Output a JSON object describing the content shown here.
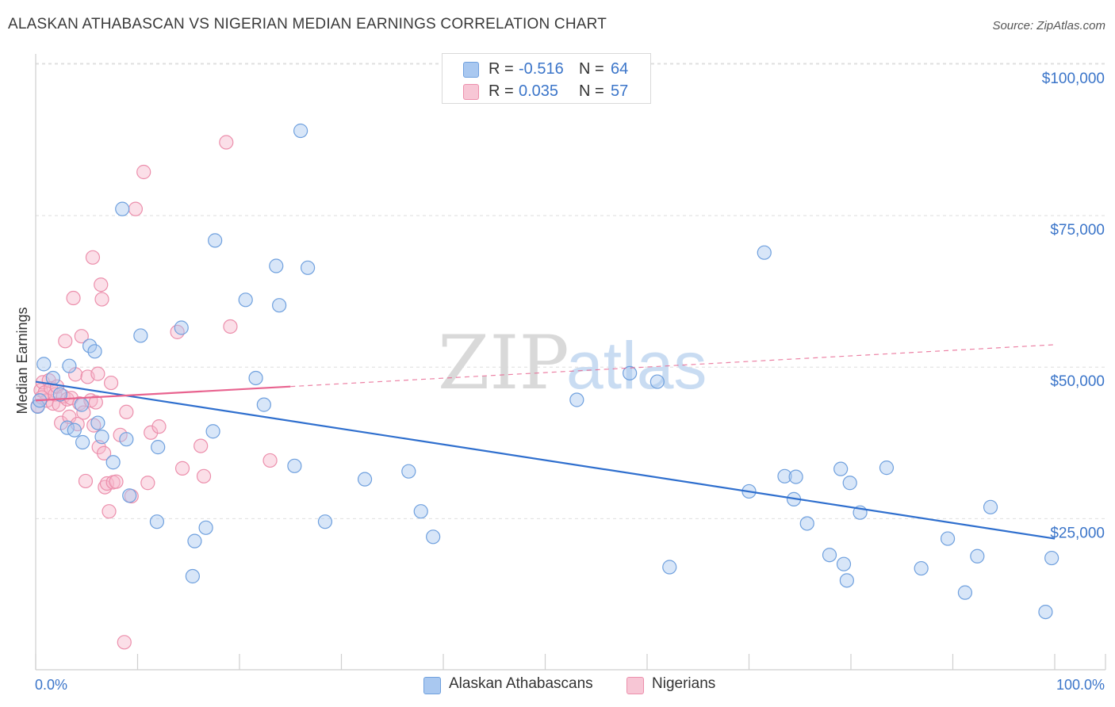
{
  "header": {
    "title": "ALASKAN ATHABASCAN VS NIGERIAN MEDIAN EARNINGS CORRELATION CHART",
    "source": "Source: ZipAtlas.com"
  },
  "watermark": {
    "part1": "ZIP",
    "part2": "atlas"
  },
  "legend": {
    "rows": [
      {
        "r_label": "R =",
        "r_value": "-0.516",
        "n_label": "N =",
        "n_value": "64"
      },
      {
        "r_label": "R =",
        "r_value": "0.035",
        "n_label": "N =",
        "n_value": "57"
      }
    ],
    "bottom": [
      "Alaskan Athabascans",
      "Nigerians"
    ]
  },
  "colors": {
    "series1_fill": "#a9c8f0",
    "series1_stroke": "#6fa0de",
    "series1_line": "#2f6fce",
    "series2_fill": "#f7b8cb",
    "series2_stroke": "#ec8fac",
    "series2_line": "#e8638f",
    "axis_value_text": "#3b75c9",
    "grid": "#dedede"
  },
  "chart_data": {
    "type": "scatter",
    "title": "ALASKAN ATHABASCAN VS NIGERIAN MEDIAN EARNINGS CORRELATION CHART",
    "xlabel": "",
    "ylabel": "Median Earnings",
    "xlim": [
      0,
      100
    ],
    "ylim": [
      0,
      105000
    ],
    "x_tick_labels": [
      "0.0%",
      "100.0%"
    ],
    "y_ticks": [
      25000,
      50000,
      75000,
      100000
    ],
    "y_tick_labels": [
      "$25,000",
      "$50,000",
      "$75,000",
      "$100,000"
    ],
    "grid": true,
    "legend_position": "top-center",
    "series": [
      {
        "name": "Alaskan Athabascans",
        "r": -0.516,
        "n": 64,
        "trend": {
          "x": [
            0,
            100
          ],
          "y": [
            47600,
            21700
          ]
        },
        "points": [
          [
            0.2,
            43500
          ],
          [
            0.8,
            50500
          ],
          [
            1.7,
            48200
          ],
          [
            2.4,
            45500
          ],
          [
            3.1,
            40000
          ],
          [
            3.3,
            50200
          ],
          [
            3.8,
            39600
          ],
          [
            4.5,
            43800
          ],
          [
            4.6,
            37600
          ],
          [
            5.3,
            53500
          ],
          [
            5.8,
            52600
          ],
          [
            6.1,
            40800
          ],
          [
            6.5,
            38500
          ],
          [
            7.6,
            34300
          ],
          [
            8.5,
            76100
          ],
          [
            8.9,
            38100
          ],
          [
            9.2,
            28800
          ],
          [
            10.3,
            55200
          ],
          [
            11.9,
            24500
          ],
          [
            12.0,
            36800
          ],
          [
            14.3,
            56500
          ],
          [
            15.4,
            15500
          ],
          [
            15.6,
            21300
          ],
          [
            16.7,
            23500
          ],
          [
            17.4,
            39400
          ],
          [
            17.6,
            70900
          ],
          [
            20.6,
            61100
          ],
          [
            21.6,
            48200
          ],
          [
            22.4,
            43800
          ],
          [
            23.6,
            66700
          ],
          [
            23.9,
            60200
          ],
          [
            25.4,
            33700
          ],
          [
            26.0,
            89000
          ],
          [
            26.7,
            66400
          ],
          [
            28.4,
            24500
          ],
          [
            32.3,
            31500
          ],
          [
            36.6,
            32800
          ],
          [
            37.8,
            26200
          ],
          [
            39.0,
            22000
          ],
          [
            53.1,
            44600
          ],
          [
            58.3,
            49000
          ],
          [
            61.0,
            47600
          ],
          [
            62.2,
            17000
          ],
          [
            70.0,
            29500
          ],
          [
            71.5,
            68900
          ],
          [
            73.5,
            32000
          ],
          [
            74.4,
            28200
          ],
          [
            74.6,
            31900
          ],
          [
            75.7,
            24200
          ],
          [
            77.9,
            19000
          ],
          [
            79.0,
            33200
          ],
          [
            79.3,
            17500
          ],
          [
            79.6,
            14800
          ],
          [
            79.9,
            30900
          ],
          [
            80.9,
            26000
          ],
          [
            83.5,
            33400
          ],
          [
            86.9,
            16800
          ],
          [
            89.5,
            21700
          ],
          [
            91.2,
            12800
          ],
          [
            92.4,
            18800
          ],
          [
            93.7,
            26900
          ],
          [
            99.1,
            9600
          ],
          [
            99.7,
            18500
          ],
          [
            0.4,
            44500
          ]
        ]
      },
      {
        "name": "Nigerians",
        "r": 0.035,
        "n": 57,
        "trend": {
          "x": [
            0,
            25
          ],
          "y": [
            44500,
            46800
          ]
        },
        "trend_extension": {
          "x": [
            25,
            100
          ],
          "y": [
            46800,
            53700
          ]
        },
        "points": [
          [
            0.2,
            43600
          ],
          [
            0.5,
            46200
          ],
          [
            0.7,
            47500
          ],
          [
            0.9,
            45800
          ],
          [
            1.1,
            44500
          ],
          [
            1.3,
            47800
          ],
          [
            1.5,
            46500
          ],
          [
            1.7,
            44000
          ],
          [
            1.9,
            45500
          ],
          [
            2.1,
            46800
          ],
          [
            2.3,
            43800
          ],
          [
            2.5,
            40800
          ],
          [
            2.7,
            45200
          ],
          [
            2.9,
            54300
          ],
          [
            3.1,
            44700
          ],
          [
            3.3,
            41800
          ],
          [
            3.5,
            44900
          ],
          [
            3.7,
            61400
          ],
          [
            3.9,
            48800
          ],
          [
            4.1,
            40600
          ],
          [
            4.3,
            44000
          ],
          [
            4.5,
            55100
          ],
          [
            4.7,
            42500
          ],
          [
            4.9,
            31200
          ],
          [
            5.1,
            48400
          ],
          [
            5.4,
            44500
          ],
          [
            5.6,
            68100
          ],
          [
            5.7,
            40400
          ],
          [
            5.9,
            44200
          ],
          [
            6.1,
            48900
          ],
          [
            6.2,
            36800
          ],
          [
            6.4,
            63600
          ],
          [
            6.5,
            61200
          ],
          [
            6.7,
            35800
          ],
          [
            6.8,
            30200
          ],
          [
            7.0,
            30800
          ],
          [
            7.2,
            26200
          ],
          [
            7.4,
            47400
          ],
          [
            7.6,
            31000
          ],
          [
            7.9,
            31100
          ],
          [
            8.3,
            38800
          ],
          [
            8.7,
            4600
          ],
          [
            8.9,
            42600
          ],
          [
            9.4,
            28700
          ],
          [
            9.8,
            76100
          ],
          [
            10.6,
            82200
          ],
          [
            11.0,
            30900
          ],
          [
            11.3,
            39200
          ],
          [
            12.1,
            40200
          ],
          [
            13.9,
            55800
          ],
          [
            14.4,
            33300
          ],
          [
            16.2,
            37000
          ],
          [
            16.5,
            32000
          ],
          [
            18.7,
            87100
          ],
          [
            19.1,
            56700
          ],
          [
            23.0,
            34600
          ],
          [
            0.6,
            45000
          ]
        ]
      }
    ]
  }
}
